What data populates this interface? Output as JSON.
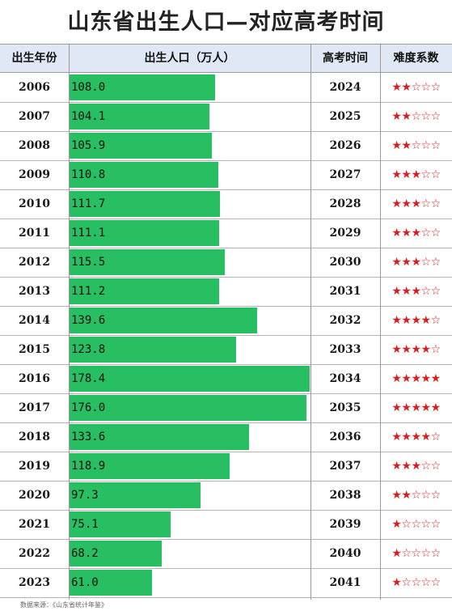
{
  "title": "山东省出生人口—对应高考时间",
  "headers": {
    "year": "出生年份",
    "population": "出生人口（万人）",
    "exam_year": "高考时间",
    "difficulty": "难度系数"
  },
  "rows": [
    {
      "year": "2006",
      "population": "108.0",
      "exam": "2024",
      "stars": 2
    },
    {
      "year": "2007",
      "population": "104.1",
      "exam": "2025",
      "stars": 2
    },
    {
      "year": "2008",
      "population": "105.9",
      "exam": "2026",
      "stars": 2
    },
    {
      "year": "2009",
      "population": "110.8",
      "exam": "2027",
      "stars": 3
    },
    {
      "year": "2010",
      "population": "111.7",
      "exam": "2028",
      "stars": 3
    },
    {
      "year": "2011",
      "population": "111.1",
      "exam": "2029",
      "stars": 3
    },
    {
      "year": "2012",
      "population": "115.5",
      "exam": "2030",
      "stars": 3
    },
    {
      "year": "2013",
      "population": "111.2",
      "exam": "2031",
      "stars": 3
    },
    {
      "year": "2014",
      "population": "139.6",
      "exam": "2032",
      "stars": 4
    },
    {
      "year": "2015",
      "population": "123.8",
      "exam": "2033",
      "stars": 4
    },
    {
      "year": "2016",
      "population": "178.4",
      "exam": "2034",
      "stars": 5
    },
    {
      "year": "2017",
      "population": "176.0",
      "exam": "2035",
      "stars": 5
    },
    {
      "year": "2018",
      "population": "133.6",
      "exam": "2036",
      "stars": 4
    },
    {
      "year": "2019",
      "population": "118.9",
      "exam": "2037",
      "stars": 3
    },
    {
      "year": "2020",
      "population": "97.3",
      "exam": "2038",
      "stars": 2
    },
    {
      "year": "2021",
      "population": "75.1",
      "exam": "2039",
      "stars": 1
    },
    {
      "year": "2022",
      "population": "68.2",
      "exam": "2040",
      "stars": 1
    },
    {
      "year": "2023",
      "population": "61.0",
      "exam": "2041",
      "stars": 1
    }
  ],
  "colors": {
    "bar": "#27bf61",
    "star": "#d81e1e",
    "header_bg": "#dfe8f4"
  },
  "source": "数据来源：《山东省统计年鉴》"
}
